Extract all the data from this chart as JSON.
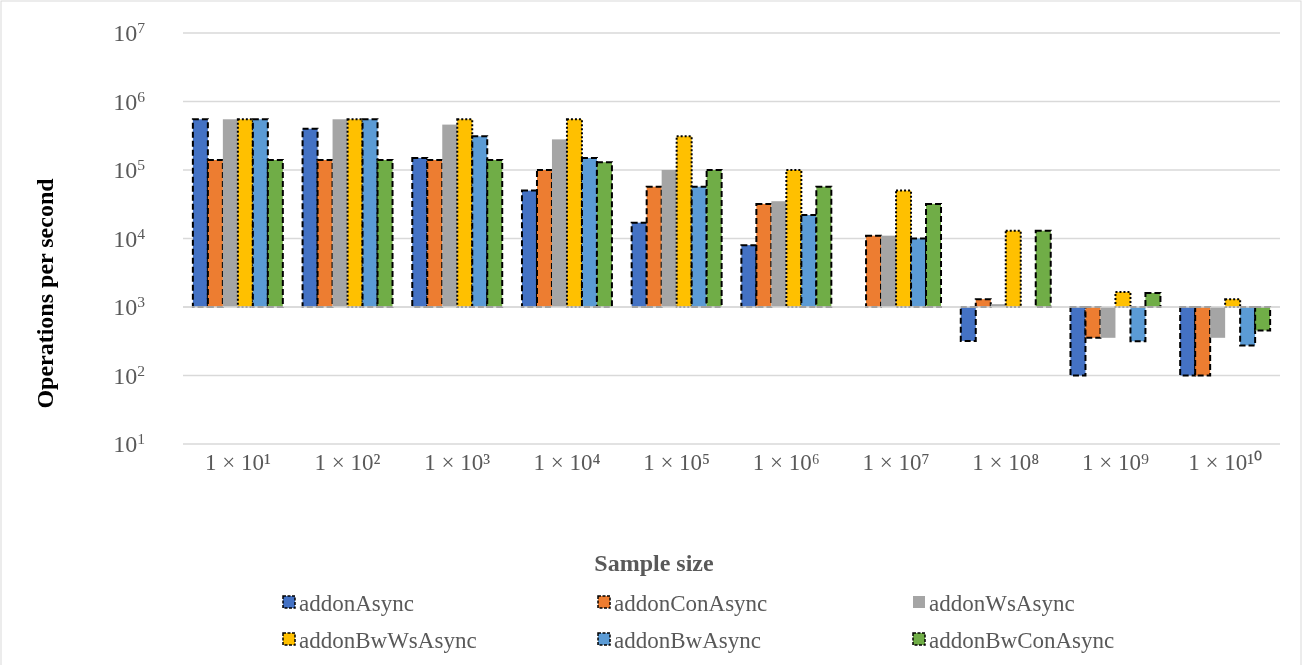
{
  "chart_data": {
    "type": "bar",
    "xlabel": "Sample size",
    "ylabel": "Operations  per second",
    "log": true,
    "grid": "y",
    "legend": "bottom",
    "categories": [
      "1 × 10¹",
      "1 × 10²",
      "1 × 10³",
      "1 × 10⁴",
      "1 × 10⁵",
      "1 × 10⁶",
      "1 × 10⁷",
      "1 × 10⁸",
      "1 × 10⁹",
      "1 × 10¹⁰"
    ],
    "ylim": [
      10,
      10000000
    ],
    "yticks": [
      {
        "value": 10,
        "label": "10$^{1}$"
      },
      {
        "value": 100,
        "label": "10$^{2}$"
      },
      {
        "value": 1000,
        "label": "10$^{3}$"
      },
      {
        "value": 10000,
        "label": "10$^{4}$"
      },
      {
        "value": 100000,
        "label": "10$^{5}$"
      },
      {
        "value": 1000000,
        "label": "10$^{6}$"
      },
      {
        "value": 10000000,
        "label": "10$^{7}$"
      }
    ],
    "series": [
      {
        "name": "addonAsync",
        "color": "#4472c4",
        "line_style": "dashed",
        "base": [
          1000,
          1000,
          1000,
          1000,
          1000,
          1000,
          null,
          1000,
          1000,
          1000
        ],
        "values": [
          549000,
          399000,
          149000,
          49000,
          16000,
          7000,
          null,
          -680,
          -900,
          -900
        ]
      },
      {
        "name": "addonConAsync",
        "color": "#ed7d31",
        "line_style": "dashed",
        "base": [
          1000,
          1000,
          1000,
          1000,
          1000,
          1000,
          1000,
          1000,
          1000,
          1000
        ],
        "values": [
          139000,
          139000,
          139000,
          99000,
          56000,
          31000,
          10000,
          300,
          -645,
          -900
        ]
      },
      {
        "name": "addonWsAsync",
        "color": "#a5a5a5",
        "line_style": "none",
        "base": [
          1000,
          1000,
          1000,
          1000,
          1000,
          1000,
          1000,
          1000,
          1000,
          1000
        ],
        "values": [
          549000,
          549000,
          459000,
          279000,
          99000,
          34000,
          10000,
          100,
          -645,
          -645
        ]
      },
      {
        "name": "addonBwWsAsync",
        "color": "#ffc000",
        "line_style": "dotted",
        "base": [
          1000,
          1000,
          1000,
          1000,
          1000,
          1000,
          1000,
          1000,
          1000,
          1000
        ],
        "values": [
          549000,
          549000,
          549000,
          549000,
          309000,
          99000,
          49000,
          12000,
          650,
          300
        ]
      },
      {
        "name": "addonBwAsync",
        "color": "#5b9bd5",
        "line_style": "dashed",
        "base": [
          1000,
          1000,
          1000,
          1000,
          1000,
          1000,
          1000,
          null,
          1000,
          1000
        ],
        "values": [
          549000,
          549000,
          309000,
          149000,
          56000,
          21000,
          9000,
          null,
          -684,
          -725
        ]
      },
      {
        "name": "addonBwConAsync",
        "color": "#70ad47",
        "line_style": "dashed",
        "base": [
          1000,
          1000,
          1000,
          1000,
          1000,
          1000,
          1000,
          1000,
          1000,
          1000
        ],
        "values": [
          139000,
          139000,
          139000,
          129000,
          99000,
          56000,
          31000,
          12000,
          600,
          -545
        ]
      }
    ]
  }
}
